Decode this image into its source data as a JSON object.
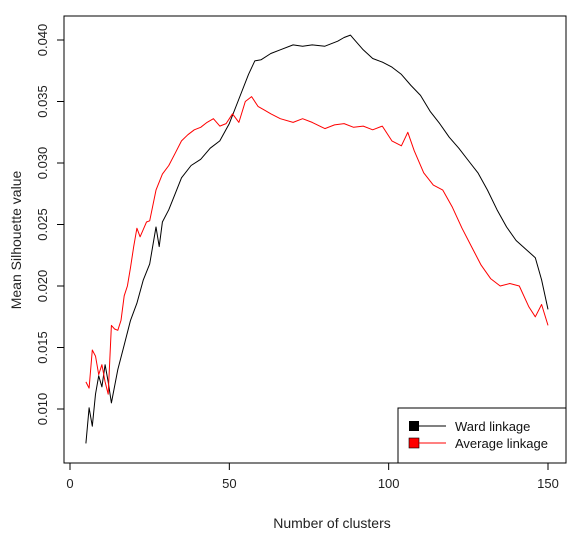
{
  "chart_data": {
    "type": "line",
    "title": "",
    "xlabel": "Number of clusters",
    "ylabel": "Mean Silhouette value",
    "xlim": [
      5,
      150
    ],
    "ylim": [
      0.0068,
      0.0417
    ],
    "xticks": [
      0,
      50,
      100,
      150
    ],
    "xtick_labels": [
      "0",
      "50",
      "100",
      "150"
    ],
    "yticks": [
      0.01,
      0.015,
      0.02,
      0.025,
      0.03,
      0.035,
      0.04
    ],
    "ytick_labels": [
      "0.010",
      "0.015",
      "0.020",
      "0.025",
      "0.030",
      "0.035",
      "0.040"
    ],
    "grid": false,
    "legend_position": "bottom-right",
    "series": [
      {
        "name": "Ward linkage",
        "color": "#000000",
        "x": [
          5,
          6,
          7,
          8,
          9,
          10,
          11,
          12,
          13,
          15,
          17,
          19,
          21,
          23,
          25,
          27,
          28,
          29,
          31,
          33,
          35,
          38,
          41,
          44,
          47,
          50,
          53,
          56,
          58,
          60,
          63,
          66,
          70,
          73,
          76,
          80,
          84,
          86,
          88,
          89,
          92,
          95,
          98,
          101,
          104,
          107,
          110,
          113,
          116,
          119,
          122,
          125,
          128,
          131,
          134,
          137,
          140,
          143,
          146,
          148,
          150
        ],
        "values": [
          0.0072,
          0.0101,
          0.0086,
          0.0112,
          0.0127,
          0.0118,
          0.0136,
          0.0122,
          0.0105,
          0.0132,
          0.0152,
          0.0172,
          0.0186,
          0.0205,
          0.0218,
          0.0248,
          0.0232,
          0.0252,
          0.0262,
          0.0275,
          0.0288,
          0.0298,
          0.0303,
          0.0312,
          0.0318,
          0.0332,
          0.0352,
          0.0372,
          0.0383,
          0.0384,
          0.0389,
          0.0392,
          0.0396,
          0.0395,
          0.0396,
          0.0395,
          0.0399,
          0.0402,
          0.0404,
          0.0401,
          0.0392,
          0.0385,
          0.0382,
          0.0378,
          0.0372,
          0.0363,
          0.0355,
          0.0342,
          0.0332,
          0.0321,
          0.0312,
          0.0302,
          0.0292,
          0.0278,
          0.0262,
          0.0248,
          0.0237,
          0.023,
          0.0223,
          0.0205,
          0.0181
        ]
      },
      {
        "name": "Average linkage",
        "color": "#ff0000",
        "x": [
          5,
          6,
          7,
          8,
          9,
          10,
          11,
          12,
          13,
          14,
          15,
          16,
          17,
          18,
          19,
          20,
          21,
          22,
          23,
          24,
          25,
          27,
          29,
          31,
          33,
          35,
          37,
          39,
          41,
          43,
          45,
          47,
          49,
          51,
          53,
          55,
          57,
          59,
          61,
          63,
          66,
          70,
          73,
          76,
          80,
          83,
          86,
          89,
          92,
          95,
          98,
          101,
          104,
          106,
          108,
          111,
          114,
          117,
          120,
          123,
          126,
          129,
          132,
          135,
          138,
          141,
          144,
          146,
          148,
          150
        ],
        "values": [
          0.0122,
          0.0117,
          0.0148,
          0.0143,
          0.0128,
          0.0136,
          0.0122,
          0.0112,
          0.0168,
          0.0165,
          0.0164,
          0.0172,
          0.0192,
          0.02,
          0.0215,
          0.0232,
          0.0247,
          0.024,
          0.0246,
          0.0252,
          0.0253,
          0.0278,
          0.0291,
          0.0298,
          0.0308,
          0.0318,
          0.0323,
          0.0327,
          0.0329,
          0.0333,
          0.0336,
          0.033,
          0.0332,
          0.034,
          0.0333,
          0.035,
          0.0354,
          0.0346,
          0.0343,
          0.034,
          0.0336,
          0.0333,
          0.0336,
          0.0333,
          0.0328,
          0.0331,
          0.0332,
          0.0329,
          0.033,
          0.0327,
          0.033,
          0.0318,
          0.0314,
          0.0325,
          0.031,
          0.0292,
          0.0282,
          0.0278,
          0.0264,
          0.0247,
          0.0232,
          0.0217,
          0.0206,
          0.02,
          0.0202,
          0.02,
          0.0183,
          0.0175,
          0.0185,
          0.0168
        ]
      }
    ],
    "legend": [
      {
        "label": "Ward linkage",
        "color": "#000000"
      },
      {
        "label": "Average linkage",
        "color": "#ff0000"
      }
    ]
  }
}
